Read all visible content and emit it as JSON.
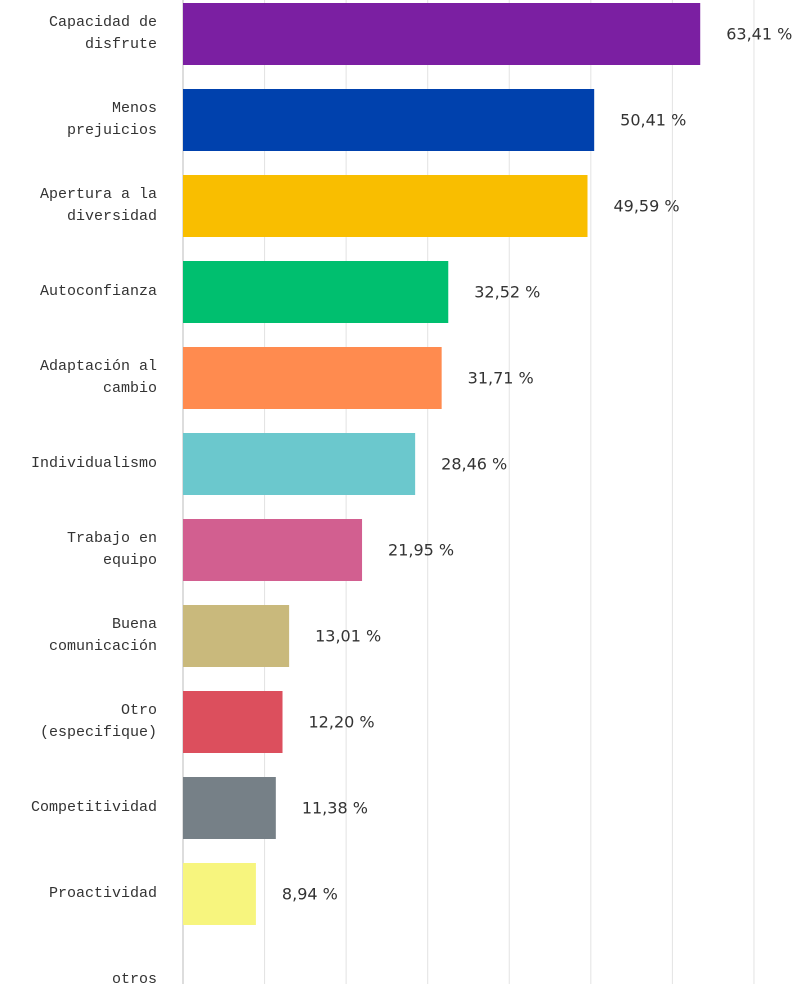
{
  "chart_data": {
    "type": "bar",
    "orientation": "horizontal",
    "categories": [
      "Capacidad de disfrute",
      "Menos prejuicios",
      "Apertura a la diversidad",
      "Autoconfianza",
      "Adaptación al cambio",
      "Individualismo",
      "Trabajo en equipo",
      "Buena comunicación",
      "Otro (especifique)",
      "Competitividad",
      "Proactividad",
      "otros"
    ],
    "values": [
      63.41,
      50.41,
      49.59,
      32.52,
      31.71,
      28.46,
      21.95,
      13.01,
      12.2,
      11.38,
      8.94,
      null
    ],
    "value_labels": [
      "63,41 %",
      "50,41 %",
      "49,59 %",
      "32,52 %",
      "31,71 %",
      "28,46 %",
      "21,95 %",
      "13,01 %",
      "12,20 %",
      "11,38 %",
      "8,94 %",
      null
    ],
    "colors": [
      "#7b1fa2",
      "#0041ad",
      "#f9be00",
      "#00bf6f",
      "#ff8b4f",
      "#6bc8cd",
      "#d25f90",
      "#c9b97c",
      "#dc4f5d",
      "#768087",
      "#f7f57e",
      null
    ],
    "xlim": [
      0,
      76.5
    ],
    "xticks": [
      0,
      10,
      20,
      30,
      40,
      50,
      60,
      70
    ],
    "grid": true
  }
}
